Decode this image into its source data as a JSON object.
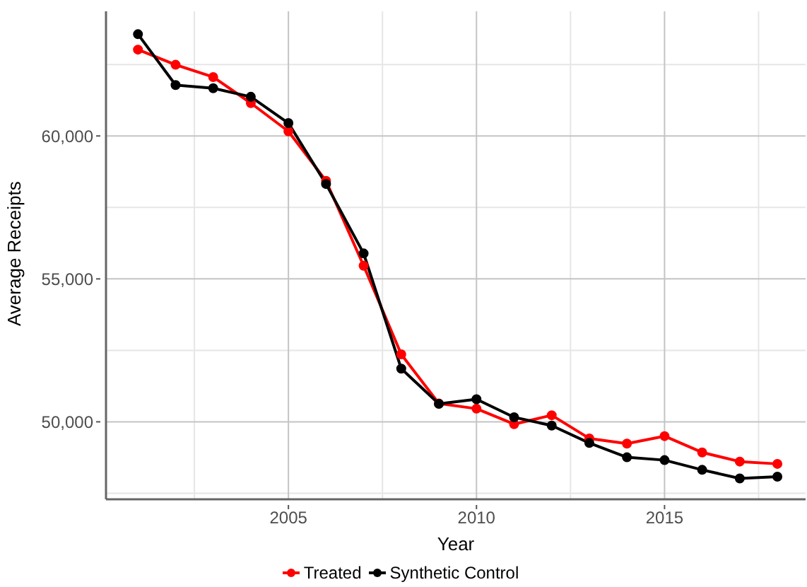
{
  "chart_data": {
    "type": "line",
    "xlabel": "Year",
    "ylabel": "Average Receipts",
    "x": [
      2001,
      2002,
      2003,
      2004,
      2005,
      2006,
      2007,
      2008,
      2009,
      2010,
      2011,
      2012,
      2013,
      2014,
      2015,
      2016,
      2017,
      2018
    ],
    "series": [
      {
        "name": "Treated",
        "color": "#ff0000",
        "values": [
          63020,
          62490,
          62060,
          61150,
          60160,
          58430,
          55460,
          52360,
          50640,
          50460,
          49920,
          50230,
          49420,
          49240,
          49500,
          48930,
          48610,
          48530
        ]
      },
      {
        "name": "Synthetic Control",
        "color": "#000000",
        "values": [
          63560,
          61780,
          61670,
          61370,
          60450,
          58320,
          55890,
          51860,
          50630,
          50790,
          50160,
          49870,
          49260,
          48760,
          48660,
          48320,
          48020,
          48080
        ]
      }
    ],
    "xlim": [
      2000.15,
      2018.75
    ],
    "xticks": [
      {
        "value": 2002.5,
        "label": null
      },
      2005,
      {
        "value": 2007.5,
        "label": null
      },
      2010,
      {
        "value": 2012.5,
        "label": null
      },
      2015,
      {
        "value": 2017.5,
        "label": null
      }
    ],
    "ylim": [
      47290,
      64360
    ],
    "yticks": [
      {
        "value": 47500,
        "label": null
      },
      {
        "value": 50000,
        "label": "50,000"
      },
      {
        "value": 52500,
        "label": null
      },
      {
        "value": 55000,
        "label": "55,000"
      },
      {
        "value": 57500,
        "label": null
      },
      {
        "value": 60000,
        "label": "60,000"
      },
      {
        "value": 62500,
        "label": null
      }
    ],
    "grid": true,
    "legend": "bottom",
    "marker": "circle",
    "line_style": "solid"
  }
}
